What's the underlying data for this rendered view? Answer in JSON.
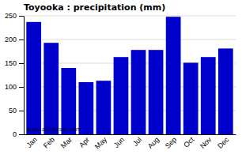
{
  "chart_data": {
    "type": "bar",
    "title": "Toyooka : precipitation (mm)",
    "categories": [
      "Jan",
      "Feb",
      "Mar",
      "Apr",
      "May",
      "Jun",
      "Jul",
      "Aug",
      "Sep",
      "Oct",
      "Nov",
      "Dec"
    ],
    "values": [
      237,
      193,
      140,
      110,
      113,
      163,
      178,
      178,
      248,
      151,
      163,
      181
    ],
    "color": "#0000CC",
    "ylim": [
      0,
      250
    ],
    "yticks": [
      0,
      50,
      100,
      150,
      200,
      250
    ],
    "grid": true,
    "annotation": "www.allmetsat.com"
  }
}
